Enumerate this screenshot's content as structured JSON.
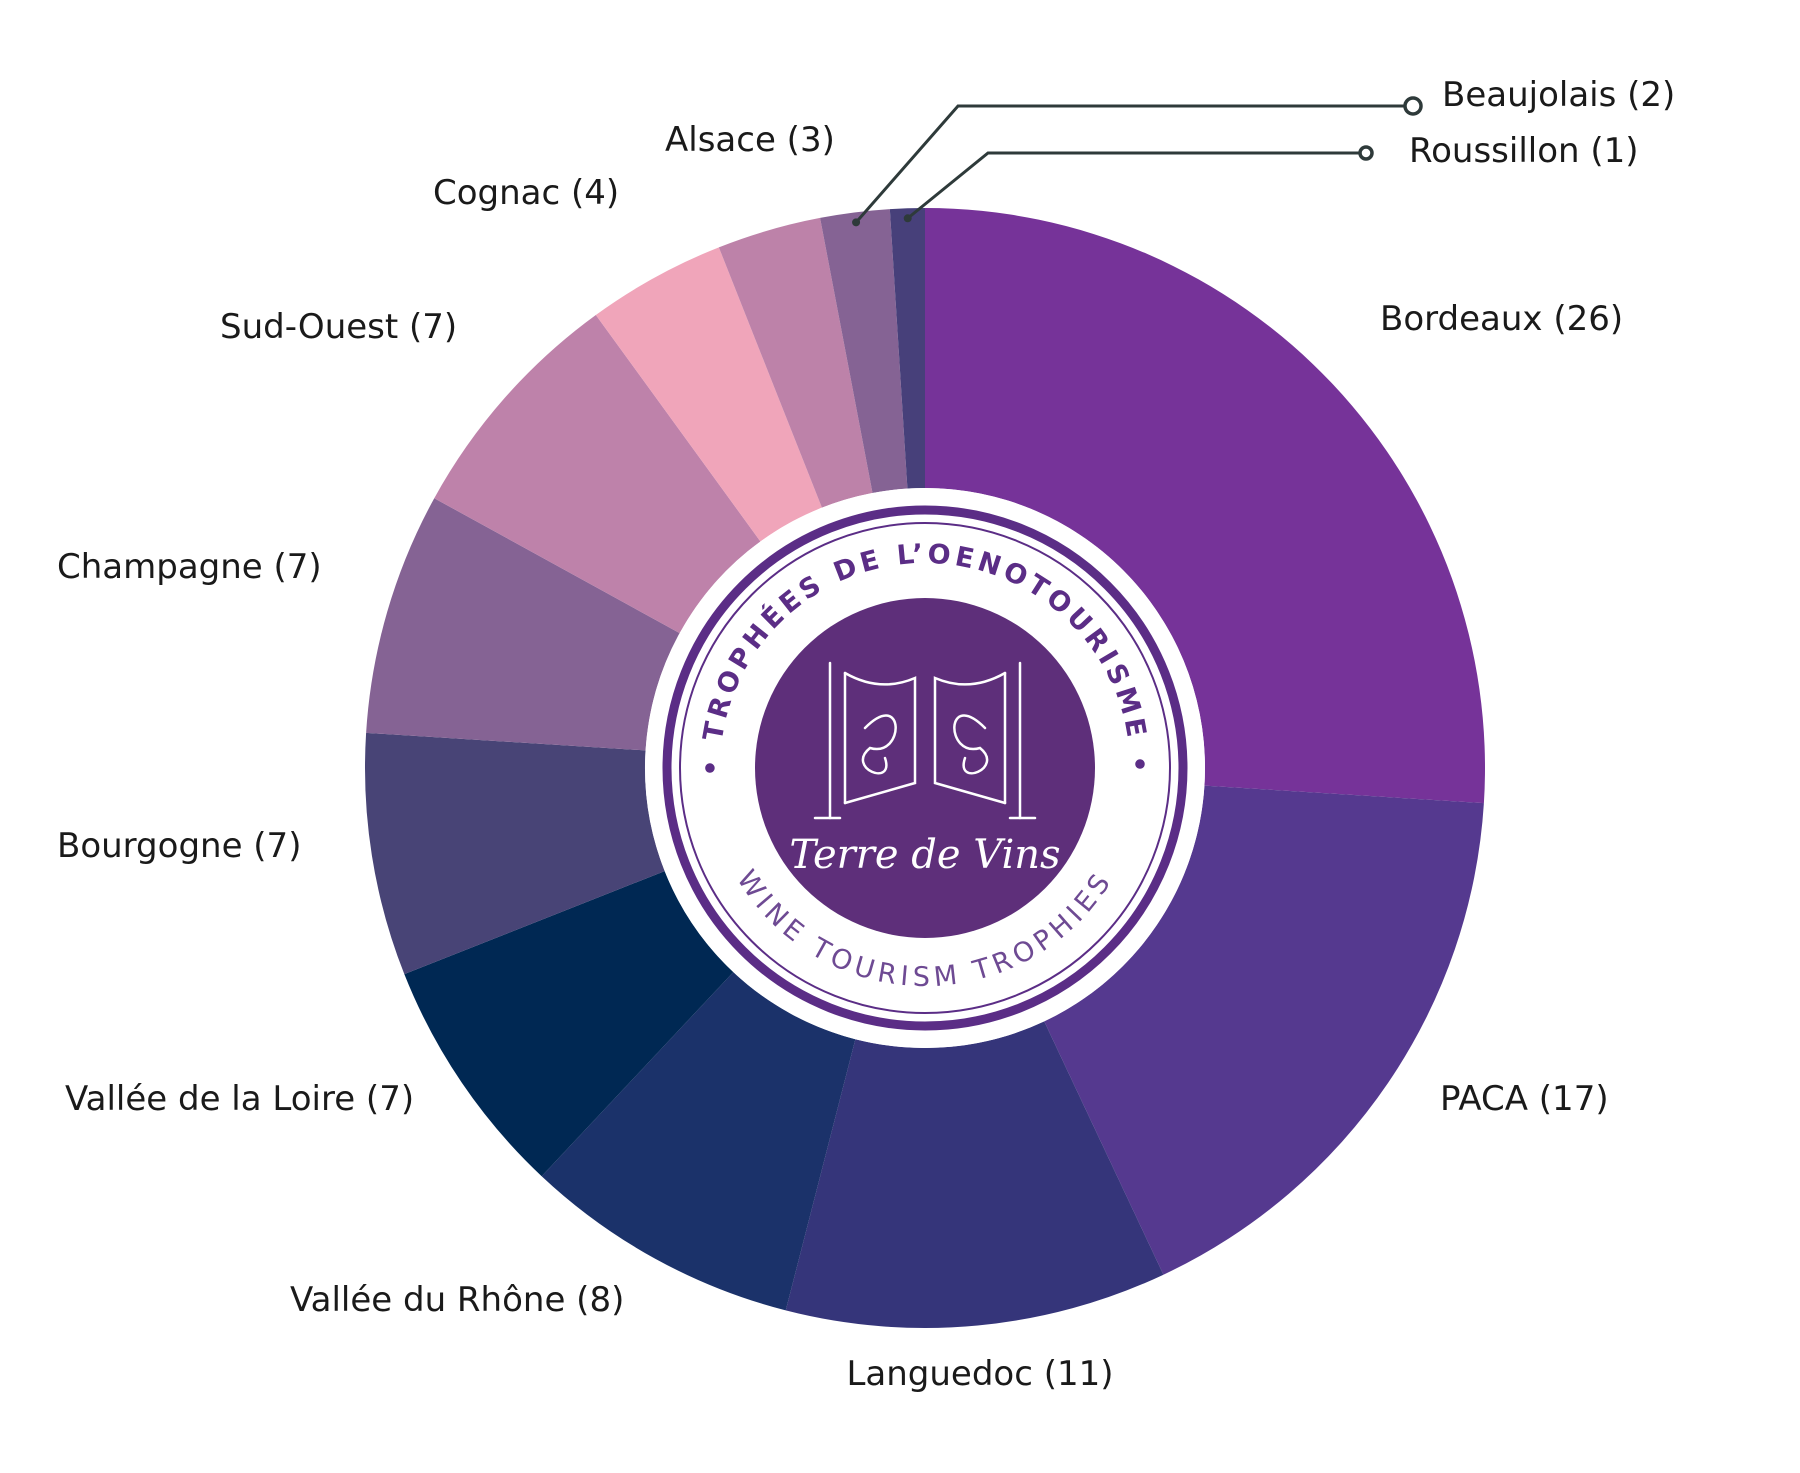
{
  "chart_data": {
    "type": "pie",
    "variant": "donut",
    "title": "",
    "categories": [
      "Bordeaux",
      "PACA",
      "Languedoc",
      "Vallée du Rhône",
      "Vallée de la Loire",
      "Bourgogne",
      "Champagne",
      "Sud-Ouest",
      "Cognac",
      "Alsace",
      "Beaujolais",
      "Roussillon"
    ],
    "values": [
      26,
      17,
      11,
      8,
      7,
      7,
      7,
      7,
      4,
      3,
      2,
      1
    ],
    "labels": [
      "Bordeaux (26)",
      "PACA (17)",
      "Languedoc (11)",
      "Vallée du Rhône (8)",
      "Vallée de la Loire (7)",
      "Bourgogne (7)",
      "Champagne (7)",
      "Sud-Ouest (7)",
      "Cognac (4)",
      "Alsace (3)",
      "Beaujolais (2)",
      "Roussillon (1)"
    ],
    "colors": [
      "#763399",
      "#55398f",
      "#35357a",
      "#1b326a",
      "#002853",
      "#484476",
      "#856394",
      "#be82aa",
      "#f0a5ba",
      "#bd82a9",
      "#856394",
      "#47407a"
    ],
    "legend": "none"
  },
  "logo": {
    "arc_top": "• TROPHÉES DE L’OENOTOURISME •",
    "arc_bottom": "WINE TOURISM TROPHIES",
    "brand": "Terre de Vins",
    "colors": {
      "ring": "#5b2d86",
      "disc": "#5e2f7a",
      "inner_ring": "#ffffff"
    }
  }
}
